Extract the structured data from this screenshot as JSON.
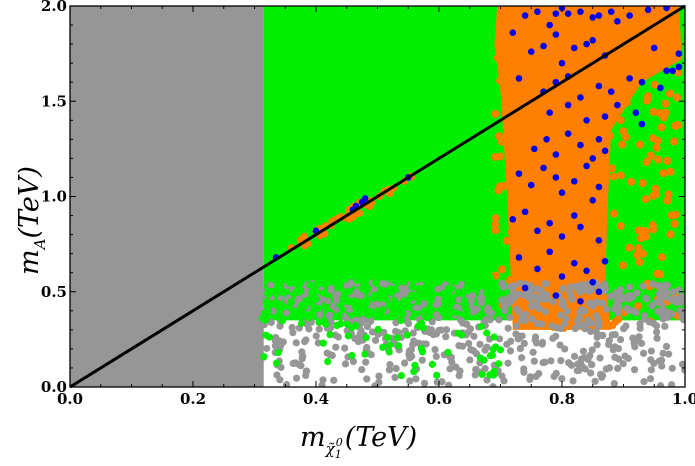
{
  "chart_data": {
    "type": "scatter",
    "title": "",
    "xlabel": {
      "main": "m",
      "sub": "χ̃",
      "subsub": "1",
      "sup": "0",
      "unit": "(TeV)"
    },
    "ylabel": {
      "main": "m",
      "sub": "A",
      "unit": "(TeV)"
    },
    "xlim": [
      0,
      1
    ],
    "ylim": [
      0,
      2
    ],
    "xticks": [
      "0.0",
      "0.2",
      "0.4",
      "0.6",
      "0.8",
      "1.0"
    ],
    "xtick_values": [
      0,
      0.2,
      0.4,
      0.6,
      0.8,
      1.0
    ],
    "yticks": [
      "0.0",
      "0.5",
      "1.0",
      "1.5",
      "2.0"
    ],
    "ytick_values": [
      0,
      0.5,
      1.0,
      1.5,
      2.0
    ],
    "colors": {
      "gray": "#969696",
      "green": "#00ee00",
      "orange": "#ff8000",
      "blue": "#0000ee",
      "line": "#000000"
    },
    "line": {
      "name": "mA = 2 m_chi",
      "x": [
        0,
        1
      ],
      "y": [
        0,
        2
      ]
    },
    "regions": [
      {
        "name": "gray",
        "polygon": [
          [
            0,
            0
          ],
          [
            0.315,
            0
          ],
          [
            0.315,
            2
          ],
          [
            0,
            2
          ]
        ]
      },
      {
        "name": "green",
        "polygon": [
          [
            0.315,
            0.35
          ],
          [
            1,
            0.35
          ],
          [
            1,
            2
          ],
          [
            0.315,
            2
          ]
        ]
      },
      {
        "name": "orange",
        "polygon": [
          [
            0.695,
            2
          ],
          [
            0.99,
            2
          ],
          [
            0.995,
            1.72
          ],
          [
            0.93,
            1.6
          ],
          [
            0.88,
            1.35
          ],
          [
            0.875,
            1.0
          ],
          [
            0.87,
            0.55
          ],
          [
            0.88,
            0.3
          ],
          [
            0.72,
            0.3
          ],
          [
            0.715,
            0.7
          ],
          [
            0.71,
            1.05
          ],
          [
            0.705,
            1.3
          ],
          [
            0.7,
            1.55
          ],
          [
            0.69,
            1.8
          ]
        ]
      }
    ],
    "scatter_bands": [
      {
        "name": "gray",
        "xrange": [
          0.02,
          1.0
        ],
        "yrange": [
          0.0,
          0.55
        ],
        "count": 900
      },
      {
        "name": "green",
        "xrange": [
          0.31,
          0.7
        ],
        "yrange": [
          0.05,
          0.6
        ],
        "count": 160
      },
      {
        "name": "orange",
        "xrange": [
          0.34,
          0.56
        ],
        "along_line": true,
        "count": 40
      }
    ],
    "series": [
      {
        "name": "blue",
        "points": [
          [
            0.335,
            0.68
          ],
          [
            0.4,
            0.82
          ],
          [
            0.46,
            0.93
          ],
          [
            0.465,
            0.95
          ],
          [
            0.475,
            0.97
          ],
          [
            0.48,
            0.99
          ],
          [
            0.55,
            1.1
          ],
          [
            0.72,
            1.86
          ],
          [
            0.74,
            1.95
          ],
          [
            0.76,
            1.97
          ],
          [
            0.78,
            1.9
          ],
          [
            0.79,
            1.96
          ],
          [
            0.8,
            1.99
          ],
          [
            0.81,
            1.96
          ],
          [
            0.83,
            1.97
          ],
          [
            0.85,
            1.94
          ],
          [
            0.86,
            1.95
          ],
          [
            0.88,
            1.97
          ],
          [
            0.89,
            1.92
          ],
          [
            0.91,
            1.95
          ],
          [
            0.94,
            1.98
          ],
          [
            0.97,
            1.99
          ],
          [
            0.75,
            1.76
          ],
          [
            0.77,
            1.79
          ],
          [
            0.79,
            1.85
          ],
          [
            0.8,
            1.7
          ],
          [
            0.82,
            1.78
          ],
          [
            0.84,
            1.8
          ],
          [
            0.85,
            1.82
          ],
          [
            0.87,
            1.74
          ],
          [
            0.95,
            1.78
          ],
          [
            0.99,
            1.75
          ],
          [
            0.73,
            1.62
          ],
          [
            0.77,
            1.55
          ],
          [
            0.79,
            1.6
          ],
          [
            0.81,
            1.63
          ],
          [
            0.83,
            1.52
          ],
          [
            0.86,
            1.58
          ],
          [
            0.88,
            1.55
          ],
          [
            0.91,
            1.62
          ],
          [
            0.93,
            1.6
          ],
          [
            0.96,
            1.57
          ],
          [
            0.98,
            1.66
          ],
          [
            0.99,
            1.68
          ],
          [
            0.97,
            1.66
          ],
          [
            0.78,
            1.44
          ],
          [
            0.81,
            1.48
          ],
          [
            0.84,
            1.4
          ],
          [
            0.87,
            1.42
          ],
          [
            0.89,
            1.48
          ],
          [
            0.92,
            1.44
          ],
          [
            0.93,
            1.38
          ],
          [
            0.755,
            1.25
          ],
          [
            0.775,
            1.3
          ],
          [
            0.79,
            1.22
          ],
          [
            0.81,
            1.33
          ],
          [
            0.83,
            1.27
          ],
          [
            0.85,
            1.2
          ],
          [
            0.86,
            1.3
          ],
          [
            0.87,
            1.24
          ],
          [
            0.73,
            1.12
          ],
          [
            0.75,
            1.06
          ],
          [
            0.77,
            1.15
          ],
          [
            0.79,
            1.1
          ],
          [
            0.8,
            1.02
          ],
          [
            0.82,
            1.08
          ],
          [
            0.84,
            1.16
          ],
          [
            0.85,
            0.98
          ],
          [
            0.86,
            1.05
          ],
          [
            0.72,
            0.88
          ],
          [
            0.74,
            0.92
          ],
          [
            0.76,
            0.82
          ],
          [
            0.78,
            0.86
          ],
          [
            0.8,
            0.79
          ],
          [
            0.82,
            0.9
          ],
          [
            0.83,
            0.84
          ],
          [
            0.86,
            0.77
          ],
          [
            0.73,
            0.68
          ],
          [
            0.76,
            0.62
          ],
          [
            0.78,
            0.71
          ],
          [
            0.8,
            0.58
          ],
          [
            0.82,
            0.65
          ],
          [
            0.84,
            0.61
          ],
          [
            0.85,
            0.55
          ],
          [
            0.87,
            0.66
          ],
          [
            0.74,
            0.52
          ],
          [
            0.79,
            0.48
          ],
          [
            0.83,
            0.45
          ],
          [
            0.86,
            0.5
          ]
        ]
      }
    ]
  }
}
